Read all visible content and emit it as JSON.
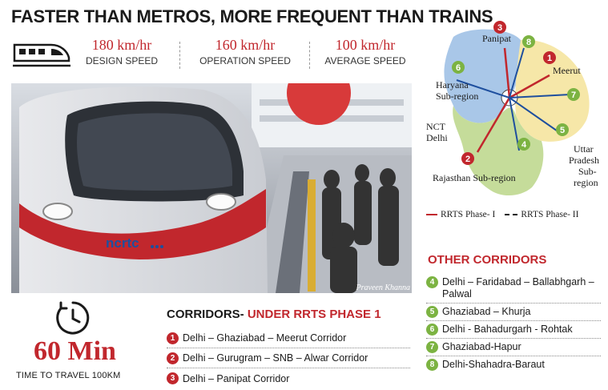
{
  "header": {
    "title": "FASTER THAN METROS, MORE FREQUENT THAN TRAINS"
  },
  "stats": [
    {
      "value": "180 km/hr",
      "label": "DESIGN SPEED"
    },
    {
      "value": "160 km/hr",
      "label": "OPERATION SPEED"
    },
    {
      "value": "100 km/hr",
      "label": "AVERAGE SPEED"
    }
  ],
  "photo": {
    "credit": "Praveen Khanna",
    "train_logo": "ncrtc"
  },
  "time": {
    "value": "60 Min",
    "label": "TIME TO TRAVEL 100KM"
  },
  "corridors": {
    "heading_black": "CORRIDORS- ",
    "heading_red": "UNDER RRTS PHASE 1",
    "items": [
      {
        "num": "1",
        "label": "Delhi – Ghaziabad – Meerut Corridor"
      },
      {
        "num": "2",
        "label": "Delhi – Gurugram – SNB – Alwar Corridor"
      },
      {
        "num": "3",
        "label": "Delhi – Panipat Corridor"
      }
    ]
  },
  "map": {
    "labels": {
      "panipat": "Panipat",
      "meerut": "Meerut",
      "haryana": "Haryana",
      "haryana2": "Sub-region",
      "ncr": "NCT",
      "ncr2": "Delhi",
      "up1": "Uttar",
      "up2": "Pradesh",
      "up3": "Sub-",
      "up4": "region",
      "rajasthan": "Rajasthan Sub-region"
    },
    "markers": [
      "1",
      "2",
      "3",
      "4",
      "5",
      "6",
      "7",
      "8"
    ]
  },
  "legend": {
    "phase1": "RRTS Phase- I",
    "phase2": "RRTS Phase- II"
  },
  "other_corridors": {
    "heading": "OTHER CORRIDORS",
    "items": [
      {
        "num": "4",
        "label": "Delhi – Faridabad – Ballabhgarh – Palwal"
      },
      {
        "num": "5",
        "label": "Ghaziabad – Khurja"
      },
      {
        "num": "6",
        "label": "Delhi - Bahadurgarh - Rohtak"
      },
      {
        "num": "7",
        "label": "Ghaziabad-Hapur"
      },
      {
        "num": "8",
        "label": "Delhi-Shahadra-Baraut"
      }
    ]
  },
  "colors": {
    "accent_red": "#c1272d",
    "accent_green": "#7cb342",
    "haryana": "#a9c7e8",
    "up": "#f6e7a8",
    "rajasthan": "#c5dc9a"
  }
}
